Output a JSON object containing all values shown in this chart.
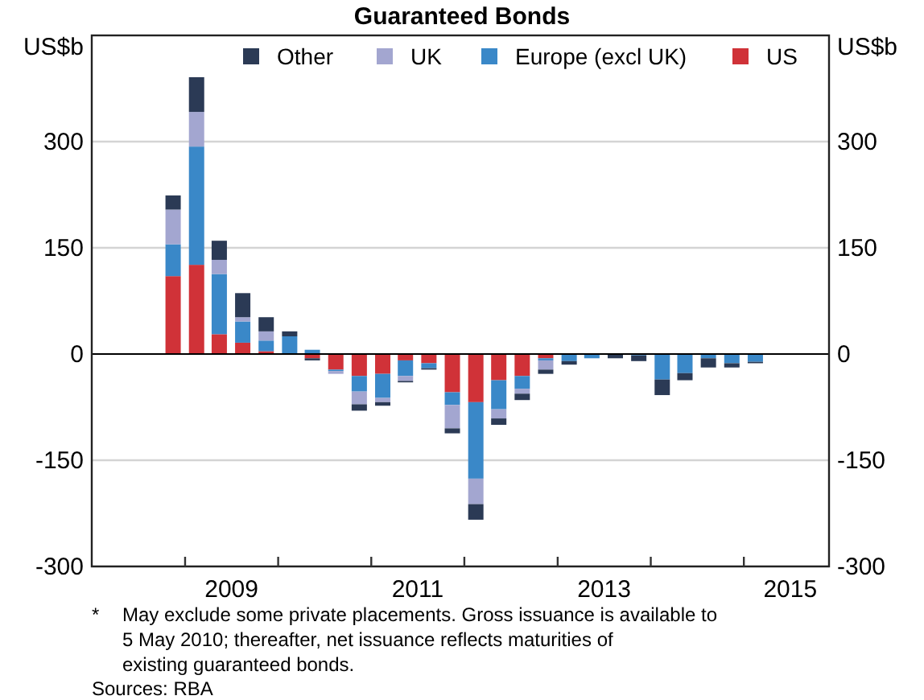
{
  "chart_data": {
    "type": "bar",
    "title": "Guaranteed Bonds",
    "ylabel": "US$b",
    "y2label": "US$b",
    "stacked": true,
    "legend": "top",
    "grid": "y",
    "x": [
      "2008-11-15",
      "2009-02-15",
      "2009-05-15",
      "2009-08-15",
      "2009-11-15",
      "2010-02-15",
      "2010-05-15",
      "2010-08-15",
      "2010-11-15",
      "2011-02-15",
      "2011-05-15",
      "2011-08-15",
      "2011-11-15",
      "2012-02-15",
      "2012-05-15",
      "2012-08-15",
      "2012-11-15",
      "2013-02-15",
      "2013-05-15",
      "2013-08-15",
      "2013-11-15",
      "2014-02-15",
      "2014-05-15",
      "2014-08-15",
      "2014-11-15",
      "2015-02-15"
    ],
    "xlim": [
      "2008-01-01",
      "2015-12-01"
    ],
    "xticks": [
      {
        "value": "2009-01-01",
        "label": null
      },
      {
        "value": "2009-07-02",
        "label": "2009"
      },
      {
        "value": "2010-01-01",
        "label": null
      },
      {
        "value": "2011-01-01",
        "label": null
      },
      {
        "value": "2011-07-02",
        "label": "2011"
      },
      {
        "value": "2012-01-01",
        "label": null
      },
      {
        "value": "2013-01-01",
        "label": null
      },
      {
        "value": "2013-07-02",
        "label": "2013"
      },
      {
        "value": "2014-01-01",
        "label": null
      },
      {
        "value": "2015-01-01",
        "label": null
      },
      {
        "value": "2015-07-02",
        "label": "2015"
      }
    ],
    "ylim": [
      -300,
      450
    ],
    "yticks": [
      -300,
      -150,
      0,
      150,
      300
    ],
    "y2lim": [
      -300,
      450
    ],
    "y2ticks": [
      -300,
      -150,
      0,
      150,
      300
    ],
    "series": [
      {
        "name": "US",
        "color": "#d03238",
        "values": [
          110,
          126,
          28,
          16,
          4,
          null,
          -6,
          -22,
          -31,
          -28,
          -9,
          -13,
          -54,
          -68,
          -37,
          -31,
          -6,
          null,
          null,
          null,
          null,
          null,
          null,
          null,
          null,
          null
        ]
      },
      {
        "name": "Europe (excl UK)",
        "color": "#3a88c8",
        "values": [
          45,
          167,
          85,
          30,
          15,
          25,
          6,
          -2,
          -22,
          -34,
          -22,
          -7,
          -18,
          -108,
          -41,
          -18,
          -3,
          -10,
          -6,
          null,
          -2,
          -36,
          -27,
          -6,
          -13,
          -11
        ]
      },
      {
        "name": "UK",
        "color": "#a3a6d0",
        "values": [
          49,
          49,
          20,
          6,
          13,
          null,
          null,
          -4,
          -18,
          -6,
          -7,
          null,
          -33,
          -36,
          -13,
          -7,
          -13,
          null,
          null,
          null,
          null,
          null,
          null,
          null,
          null,
          null
        ]
      },
      {
        "name": "Other",
        "color": "#2b3a55",
        "values": [
          20,
          49,
          27,
          34,
          20,
          7,
          -3,
          null,
          -9,
          -5,
          -2,
          -2,
          -7,
          -22,
          -9,
          -9,
          -6,
          -5,
          null,
          -6,
          -8,
          -22,
          -10,
          -13,
          -6,
          -2
        ]
      }
    ],
    "annotations": [
      "*",
      "May exclude some private placements. Gross issuance is available to 5 May 2010; thereafter, net issuance reflects maturities of existing guaranteed bonds.",
      "Sources: RBA"
    ]
  }
}
